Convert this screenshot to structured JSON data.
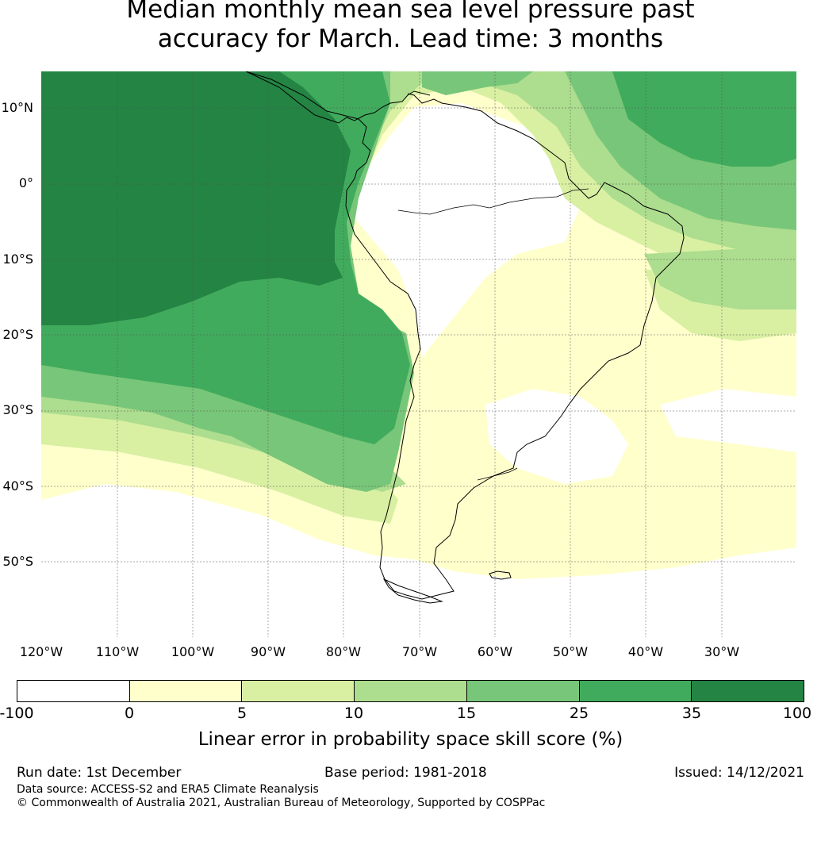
{
  "title": {
    "line1": "Median monthly mean sea level pressure past",
    "line2": "accuracy for March. Lead time: 3 months"
  },
  "map": {
    "lat_labels": [
      "10°N",
      "0°",
      "10°S",
      "20°S",
      "30°S",
      "40°S",
      "50°S"
    ],
    "lon_labels": [
      "120°W",
      "110°W",
      "100°W",
      "90°W",
      "80°W",
      "70°W",
      "60°W",
      "50°W",
      "40°W",
      "30°W"
    ],
    "colors": {
      "lt0": "#ffffff",
      "c0_5": "#ffffcc",
      "c5_10": "#d9f0a3",
      "c10_15": "#addd8e",
      "c15_25": "#78c679",
      "c25_35": "#41ab5d",
      "c35_100": "#238443"
    }
  },
  "colorbar": {
    "ticks": [
      "-100",
      "0",
      "5",
      "10",
      "15",
      "25",
      "35",
      "100"
    ],
    "label": "Linear error in probability space skill score (%)"
  },
  "footer": {
    "run_date": "Run date: 1st December",
    "base_period": "Base period: 1981-2018",
    "issued": "Issued: 14/12/2021",
    "data_source": "Data source: ACCESS-S2 and ERA5 Climate Reanalysis",
    "copyright": "© Commonwealth of Australia 2021, Australian Bureau of Meteorology, Supported by COSPPac"
  }
}
